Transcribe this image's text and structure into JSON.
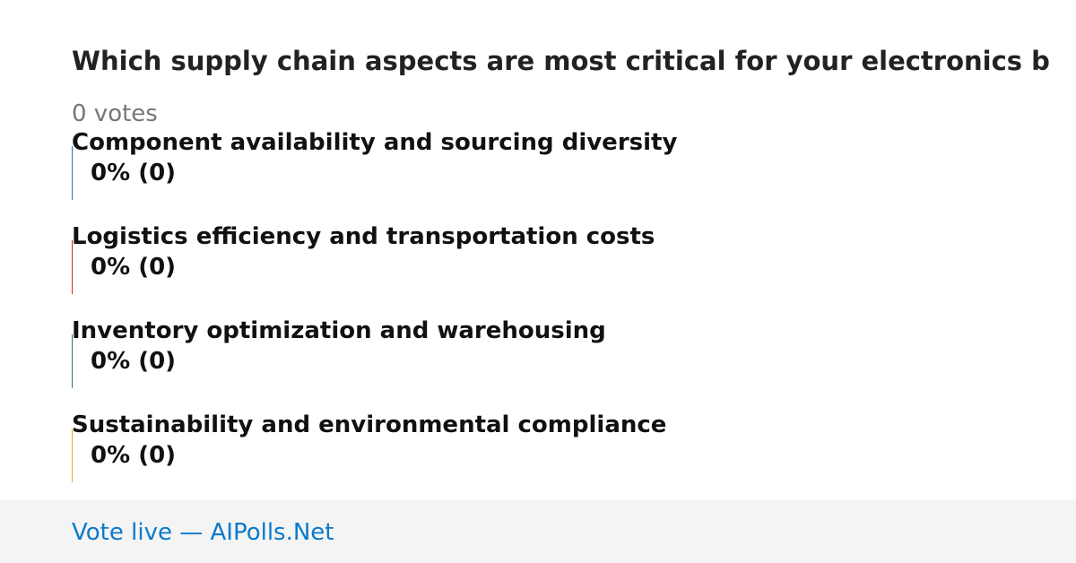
{
  "poll": {
    "title": "Which supply chain aspects are most critical for your electronics b",
    "votes_label": "0 votes",
    "options": [
      {
        "label": "Component availability and sourcing diversity",
        "percent": 0,
        "votes": 0,
        "result_label": "0% (0)",
        "color": "#1f77b4"
      },
      {
        "label": "Logistics efficiency and transportation costs",
        "percent": 0,
        "votes": 0,
        "result_label": "0% (0)",
        "color": "#d62728"
      },
      {
        "label": "Inventory optimization and warehousing",
        "percent": 0,
        "votes": 0,
        "result_label": "0% (0)",
        "color": "#2e7d4f"
      },
      {
        "label": "Sustainability and environmental compliance",
        "percent": 0,
        "votes": 0,
        "result_label": "0% (0)",
        "color": "#f0a040"
      }
    ]
  },
  "footer": {
    "link": "Vote live — AIPolls.Net"
  }
}
